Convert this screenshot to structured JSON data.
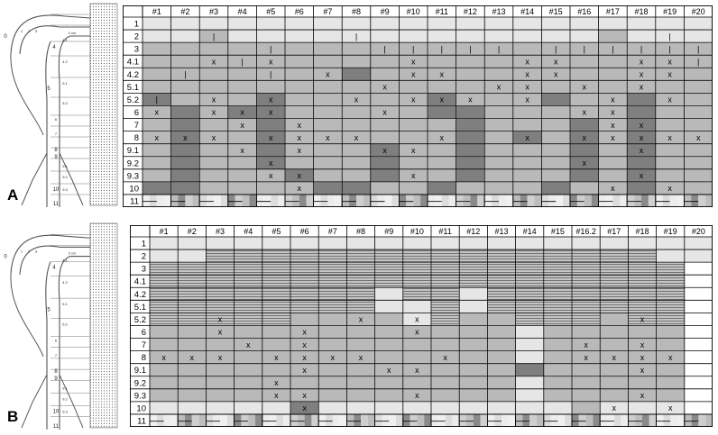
{
  "columns": [
    "#1",
    "#2",
    "#3",
    "#4",
    "#5",
    "#6",
    "#7",
    "#8",
    "#9",
    "#10",
    "#11",
    "#12",
    "#13",
    "#14",
    "#15",
    "#16",
    "#17",
    "#18",
    "#19",
    "#20"
  ],
  "rows": [
    "1",
    "2",
    "3",
    "4.1",
    "4.2",
    "5.1",
    "5.2",
    "6",
    "7",
    "8",
    "9.1",
    "9.2",
    "9.3",
    "10",
    "11"
  ],
  "panels": [
    {
      "letter": "A",
      "columns": [
        "#1",
        "#2",
        "#3",
        "#4",
        "#5",
        "#6",
        "#7",
        "#8",
        "#9",
        "#10",
        "#11",
        "#12",
        "#13",
        "#14",
        "#15",
        "#16",
        "#17",
        "#18",
        "#19",
        "#20"
      ],
      "grid": [
        "LLLLLLLLLLLLLLLLLLLL",
        "LLMLLLLLLLLLLLLLMLLL",
        "MMMMMMMMMMMMMMMMMMMM",
        "MMMMMMMMMMMMMMMMMMMM",
        "MMMMMMMDMMMMMMMMMMMM",
        "MMMMMMMMMMMMMMMMMMMM",
        "DMMMDMMMMMDMMMDMMDMM",
        "MDMDDMMMMMDDMMMMMDMM",
        "MDMMDMMMMMMDMMMDMDMM",
        "MDMMDMMMMMMDMDMDMDMM",
        "MDMMDMMMDMMDMMMDMDMM",
        "MDMMDMMMDMMDMMMDMDMM",
        "MDMMMDMMDMMDMMMDMDMM",
        "DDMMMMDDMMDMMMDMMDMM",
        "BBBBBBBBBBBBBBBBBBBB"
      ],
      "marks": [
        "                    ",
        "  I    I          I ",
        "    I   IIIII IIIIII",
        "  xIx    x   xx  xxI",
        " I  I x  xx  xx  xx ",
        "        x   xx x x  ",
        "I x x  x xxx x  x x ",
        "x xxx   x      xx  ",
        "   x x          xx  ",
        "xxx xxxx  x  x xxxxx",
        "   x x  xx       x  ",
        "    x          x    ",
        "    xx   x       x  ",
        "     x          x x ",
        "                    "
      ]
    },
    {
      "letter": "B",
      "columns": [
        "#1",
        "#2",
        "#3",
        "#4",
        "#5",
        "#6",
        "#7",
        "#8",
        "#9",
        "#10",
        "#11",
        "#12",
        "#13",
        "#14",
        "#15",
        "#16.2",
        "#17",
        "#18",
        "#19",
        "#20"
      ],
      "grid": [
        "LLLLLLLLLLLLLLLLLLLL",
        "LLHHHHHHHHHHHHHHHHLL",
        "HHHHHHHHHHHHHHHHHHHW",
        "HHHHHHHHHHHHHHHHHHHW",
        "HHHHHHHHLHHLHHHHHHHW",
        "HHHHHHHHLLHLHHHHHHHW",
        "HHHHHMMMMLHMMHHHMHHW",
        "MMMMMMMMMMMMMLMMMMMW",
        "MMMMMMMMMMMMMLMMMMMW",
        "MMMMMMMMMMMMMLMMMMMW",
        "MMMMMMMMMMMMMDMMMMMW",
        "MMMMMMMMMMMMMLMMMMMW",
        "MMMMMMMMMMMMMLMMMMMW",
        "LLLLLDLLLLLLLLLMLLLW",
        "BBBBBBBBBBBBBBBBBBBB"
      ],
      "marks": [
        "                    ",
        "                    ",
        "                    ",
        "                    ",
        "                    ",
        "                    ",
        "  x    x x       x  ",
        "  x  x   x          ",
        "   x x         x x  ",
        "xxx xxxx  x    xxxx ",
        "     x  xx       x  ",
        "    x               ",
        "    xx   x       x  ",
        "     x          x x ",
        "                    "
      ]
    }
  ],
  "diagram_labels": [
    "0",
    "1",
    "2",
    "3",
    "4",
    "4.1",
    "4.2",
    "5",
    "5.1",
    "5.2",
    "6",
    "7",
    "8",
    "9",
    "9.1",
    "9.2",
    "9.3",
    "10",
    "11",
    "2 cm"
  ],
  "colors": {
    "light": "#e6e6e6",
    "mid": "#b9b9b9",
    "dark": "#7f7f7f",
    "line": "#000000"
  }
}
